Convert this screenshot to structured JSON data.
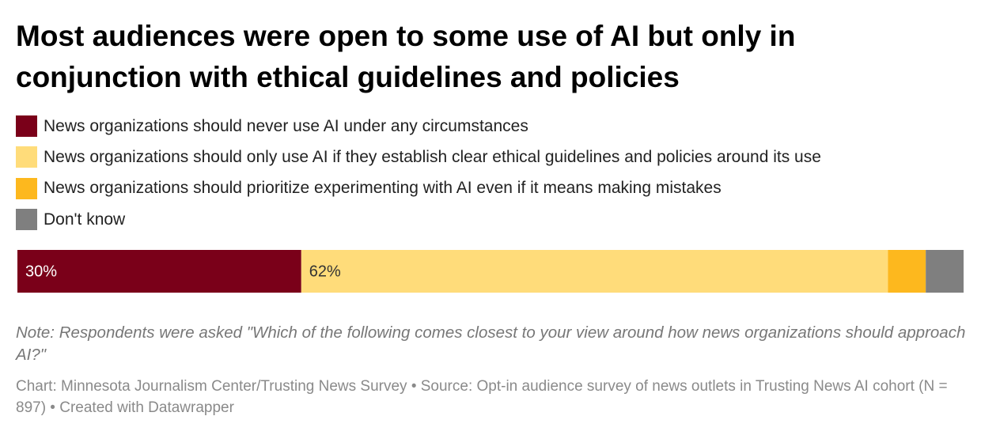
{
  "chart_data": {
    "type": "bar",
    "orientation": "horizontal",
    "stacked": true,
    "title": "Most audiences were open to some use of AI but only in conjunction with ethical guidelines and policies",
    "series": [
      {
        "name": "News organizations should never use AI under any circumstances",
        "color": "#7a0019",
        "values": [
          30
        ],
        "value_labels": [
          "30%"
        ]
      },
      {
        "name": "News organizations should only use AI if they establish clear ethical guidelines and policies around its use",
        "color": "#ffdc7a",
        "values": [
          62
        ],
        "value_labels": [
          "62%"
        ]
      },
      {
        "name": "News organizations should prioritize experimenting with AI even if it means making mistakes",
        "color": "#fdb81e",
        "values": [
          4
        ]
      },
      {
        "name": "Don't know",
        "color": "#7f7f7f",
        "values": [
          4
        ]
      }
    ],
    "note": "Note: Respondents were asked \"Which of the following comes closest to your view around how news organizations should approach AI?\"",
    "source": "Chart: Minnesota Journalism Center/Trusting News Survey • Source: Opt-in audience survey of news outlets in Trusting News AI cohort (N = 897) • Created with Datawrapper"
  }
}
